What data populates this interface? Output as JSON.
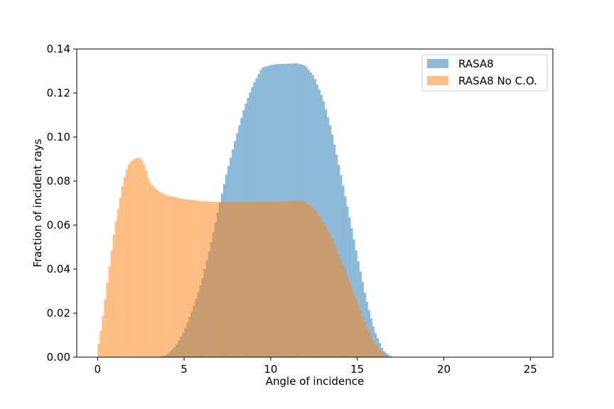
{
  "chart_data": {
    "type": "histogram",
    "title": "",
    "xlabel": "Angle of incidence",
    "ylabel": "Fraction of incident rays",
    "xlim": [
      -1.2,
      26.3
    ],
    "ylim": [
      0,
      0.14
    ],
    "xticks": [
      0,
      5,
      10,
      15,
      20,
      25
    ],
    "yticks": [
      0.0,
      0.02,
      0.04,
      0.06,
      0.08,
      0.1,
      0.12,
      0.14
    ],
    "ytick_labels": [
      "0.00",
      "0.02",
      "0.04",
      "0.06",
      "0.08",
      "0.10",
      "0.12",
      "0.14"
    ],
    "xtick_labels": [
      "0",
      "5",
      "10",
      "15",
      "20",
      "25"
    ],
    "bin_width": 0.125,
    "grid": false,
    "legend_position": "top-right",
    "series": [
      {
        "name": "RASA8",
        "color": "#1f77b4",
        "opacity": 0.5,
        "points": [
          [
            0,
            0
          ],
          [
            3.5,
            0
          ],
          [
            4,
            0.001
          ],
          [
            4.5,
            0.005
          ],
          [
            5,
            0.012
          ],
          [
            5.5,
            0.022
          ],
          [
            6,
            0.034
          ],
          [
            6.5,
            0.05
          ],
          [
            7,
            0.068
          ],
          [
            7.5,
            0.085
          ],
          [
            8,
            0.1
          ],
          [
            8.5,
            0.114
          ],
          [
            9,
            0.124
          ],
          [
            9.5,
            0.1315
          ],
          [
            10,
            0.1327
          ],
          [
            10.5,
            0.1332
          ],
          [
            11,
            0.1333
          ],
          [
            11.5,
            0.1335
          ],
          [
            12,
            0.1325
          ],
          [
            12.5,
            0.1275
          ],
          [
            13,
            0.118
          ],
          [
            13.5,
            0.1035
          ],
          [
            14,
            0.085
          ],
          [
            14.5,
            0.066
          ],
          [
            15,
            0.046
          ],
          [
            15.5,
            0.027
          ],
          [
            16,
            0.012
          ],
          [
            16.5,
            0.003
          ],
          [
            17,
            0
          ],
          [
            26,
            0
          ]
        ]
      },
      {
        "name": "RASA8 No C.O.",
        "color": "#ff7f0e",
        "opacity": 0.5,
        "points": [
          [
            0,
            0.003
          ],
          [
            0.25,
            0.015
          ],
          [
            0.5,
            0.03
          ],
          [
            0.75,
            0.045
          ],
          [
            1,
            0.059
          ],
          [
            1.25,
            0.07
          ],
          [
            1.5,
            0.08
          ],
          [
            1.75,
            0.087
          ],
          [
            2,
            0.0895
          ],
          [
            2.25,
            0.0905
          ],
          [
            2.5,
            0.0905
          ],
          [
            2.75,
            0.0865
          ],
          [
            3,
            0.0795
          ],
          [
            3.5,
            0.0755
          ],
          [
            4,
            0.0735
          ],
          [
            5,
            0.0718
          ],
          [
            6,
            0.0709
          ],
          [
            7,
            0.0705
          ],
          [
            8,
            0.0705
          ],
          [
            9,
            0.0706
          ],
          [
            10,
            0.0707
          ],
          [
            11,
            0.0708
          ],
          [
            11.5,
            0.0712
          ],
          [
            12,
            0.0705
          ],
          [
            12.5,
            0.0675
          ],
          [
            13,
            0.062
          ],
          [
            13.5,
            0.055
          ],
          [
            14,
            0.0455
          ],
          [
            14.5,
            0.0355
          ],
          [
            15,
            0.025
          ],
          [
            15.5,
            0.0145
          ],
          [
            16,
            0.0065
          ],
          [
            16.5,
            0.002
          ],
          [
            16.8,
            0
          ],
          [
            26,
            0
          ]
        ]
      }
    ]
  }
}
